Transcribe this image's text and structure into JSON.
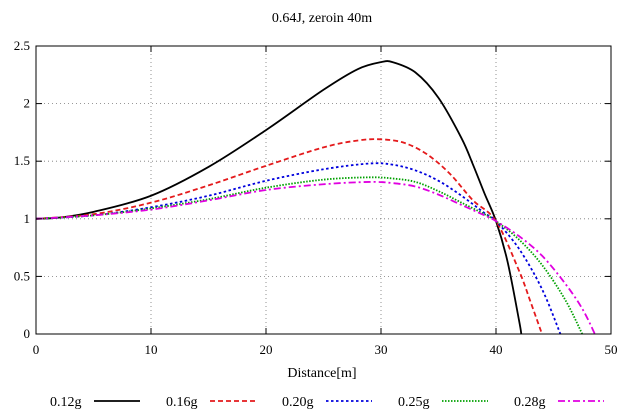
{
  "chart_data": {
    "type": "line",
    "title": "0.64J, zeroin 40m",
    "xlabel": "Distance[m]",
    "ylabel": "",
    "xlim": [
      0,
      50
    ],
    "ylim": [
      0,
      2.5
    ],
    "xticks": [
      0,
      10,
      20,
      30,
      40,
      50
    ],
    "xtick_labels": [
      "0",
      "10",
      "20",
      "30",
      "40",
      "50"
    ],
    "yticks": [
      0,
      0.5,
      1,
      1.5,
      2,
      2.5
    ],
    "ytick_labels": [
      "0",
      "0.5",
      "1",
      "1.5",
      "2",
      "2.5"
    ],
    "grid": true,
    "legend_position": "bottom",
    "series": [
      {
        "name": "0.12g",
        "color": "#000000",
        "dash": "solid",
        "x": [
          0,
          2,
          5,
          10,
          15,
          20,
          25,
          28,
          30,
          31,
          33,
          35,
          37,
          38,
          39,
          40,
          41,
          42,
          42.2
        ],
        "y": [
          1.0,
          1.01,
          1.06,
          1.2,
          1.45,
          1.77,
          2.12,
          2.3,
          2.36,
          2.36,
          2.27,
          2.05,
          1.7,
          1.47,
          1.22,
          0.98,
          0.63,
          0.12,
          0.0
        ]
      },
      {
        "name": "0.16g",
        "color": "#e41a1c",
        "dash": "dashed",
        "x": [
          0,
          5,
          10,
          15,
          20,
          25,
          28,
          30,
          32,
          34,
          36,
          38,
          40,
          42,
          43,
          44
        ],
        "y": [
          1.0,
          1.04,
          1.14,
          1.29,
          1.46,
          1.62,
          1.68,
          1.69,
          1.66,
          1.56,
          1.39,
          1.16,
          0.98,
          0.55,
          0.28,
          0.0
        ]
      },
      {
        "name": "0.20g",
        "color": "#0000dd",
        "dash": "dotted",
        "x": [
          0,
          5,
          10,
          15,
          20,
          25,
          29,
          31,
          33,
          35,
          37,
          39,
          40,
          42,
          44,
          45.6
        ],
        "y": [
          1.0,
          1.03,
          1.1,
          1.2,
          1.33,
          1.43,
          1.48,
          1.47,
          1.42,
          1.33,
          1.2,
          1.05,
          0.98,
          0.74,
          0.39,
          0.0
        ]
      },
      {
        "name": "0.25g",
        "color": "#00a000",
        "dash": "fine-dotted",
        "x": [
          0,
          5,
          10,
          15,
          20,
          25,
          29,
          31,
          33,
          35,
          37,
          39,
          40,
          42,
          44,
          46,
          47.5
        ],
        "y": [
          1.0,
          1.03,
          1.09,
          1.17,
          1.27,
          1.34,
          1.36,
          1.35,
          1.32,
          1.24,
          1.14,
          1.04,
          0.98,
          0.82,
          0.6,
          0.3,
          0.0
        ]
      },
      {
        "name": "0.28g",
        "color": "#e000e0",
        "dash": "dash-dot",
        "x": [
          0,
          5,
          10,
          15,
          20,
          25,
          29,
          31,
          33,
          35,
          37,
          39,
          40,
          42,
          44,
          46,
          47.5,
          48.6
        ],
        "y": [
          1.0,
          1.03,
          1.08,
          1.16,
          1.25,
          1.3,
          1.32,
          1.31,
          1.28,
          1.21,
          1.12,
          1.03,
          0.98,
          0.85,
          0.68,
          0.44,
          0.22,
          0.0
        ]
      }
    ]
  }
}
